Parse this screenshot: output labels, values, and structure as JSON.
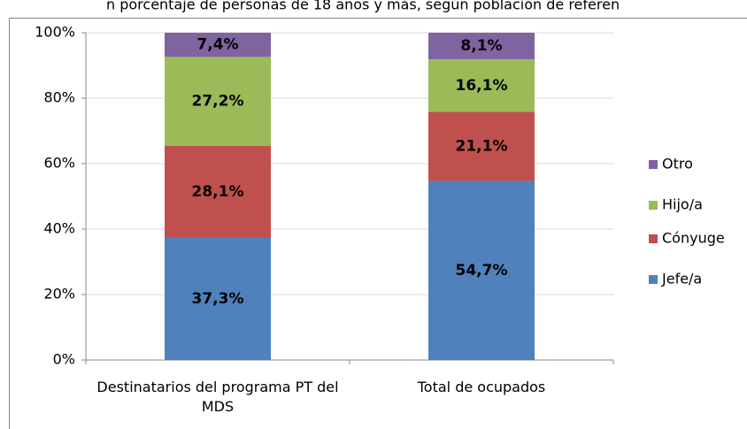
{
  "chart_data": {
    "type": "stacked_bar",
    "title": "n porcentaje de personas de 18 años y más, según población de referen",
    "categories": [
      "Destinatarios del programa PT del MDS",
      "Total de ocupados"
    ],
    "series": [
      {
        "name": "Jefe/a",
        "color": "#4f81bd",
        "values": [
          37.3,
          54.7
        ],
        "value_labels": [
          "37,3%",
          "54,7%"
        ]
      },
      {
        "name": "Cónyuge",
        "color": "#c0504d",
        "values": [
          28.1,
          21.1
        ],
        "value_labels": [
          "28,1%",
          "21,1%"
        ]
      },
      {
        "name": "Hijo/a",
        "color": "#9bbb59",
        "values": [
          27.2,
          16.1
        ],
        "value_labels": [
          "27,2%",
          "16,1%"
        ]
      },
      {
        "name": "Otro",
        "color": "#8064a2",
        "values": [
          7.4,
          8.1
        ],
        "value_labels": [
          "7,4%",
          "8,1%"
        ]
      }
    ],
    "ylim": [
      0,
      100
    ],
    "yticks": [
      {
        "value": 0,
        "label": "0%"
      },
      {
        "value": 20,
        "label": "20%"
      },
      {
        "value": 40,
        "label": "40%"
      },
      {
        "value": 60,
        "label": "60%"
      },
      {
        "value": 80,
        "label": "80%"
      },
      {
        "value": 100,
        "label": "100%"
      }
    ],
    "grid": true,
    "legend": "right"
  }
}
